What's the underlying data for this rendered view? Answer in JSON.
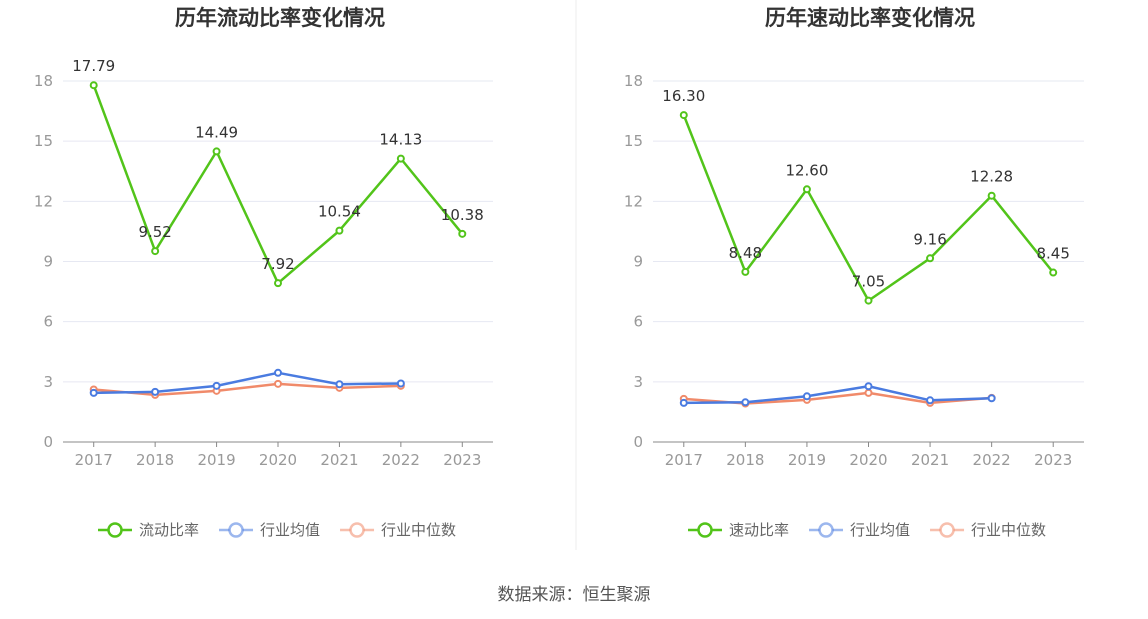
{
  "source_label": "数据来源：恒生聚源",
  "chart_data": [
    {
      "type": "line",
      "title": "历年流动比率变化情况",
      "categories": [
        "2017",
        "2018",
        "2019",
        "2020",
        "2021",
        "2022",
        "2023"
      ],
      "ylim": [
        0,
        18
      ],
      "yticks": [
        0,
        3,
        6,
        9,
        12,
        15,
        18
      ],
      "grid": true,
      "legend_position": "bottom",
      "series": [
        {
          "name": "流动比率",
          "color": "#52c41a",
          "values": [
            17.79,
            9.52,
            14.49,
            7.92,
            10.54,
            14.13,
            10.38
          ],
          "labels": [
            "17.79",
            "9.52",
            "14.49",
            "7.92",
            "10.54",
            "14.13",
            "10.38"
          ]
        },
        {
          "name": "行业均值",
          "color": "#4a7be0",
          "values": [
            2.45,
            2.5,
            2.8,
            3.45,
            2.88,
            2.92,
            null
          ]
        },
        {
          "name": "行业中位数",
          "color": "#f08a6a",
          "values": [
            2.62,
            2.35,
            2.55,
            2.9,
            2.7,
            2.8,
            null
          ]
        }
      ]
    },
    {
      "type": "line",
      "title": "历年速动比率变化情况",
      "categories": [
        "2017",
        "2018",
        "2019",
        "2020",
        "2021",
        "2022",
        "2023"
      ],
      "ylim": [
        0,
        18
      ],
      "yticks": [
        0,
        3,
        6,
        9,
        12,
        15,
        18
      ],
      "grid": true,
      "legend_position": "bottom",
      "series": [
        {
          "name": "速动比率",
          "color": "#52c41a",
          "values": [
            16.3,
            8.48,
            12.6,
            7.05,
            9.16,
            12.28,
            8.45
          ],
          "labels": [
            "16.30",
            "8.48",
            "12.60",
            "7.05",
            "9.16",
            "12.28",
            "8.45"
          ]
        },
        {
          "name": "行业均值",
          "color": "#4a7be0",
          "values": [
            1.95,
            1.98,
            2.28,
            2.78,
            2.08,
            2.18,
            null
          ]
        },
        {
          "name": "行业中位数",
          "color": "#f08a6a",
          "values": [
            2.15,
            1.92,
            2.1,
            2.45,
            1.95,
            2.2,
            null
          ]
        }
      ]
    }
  ]
}
